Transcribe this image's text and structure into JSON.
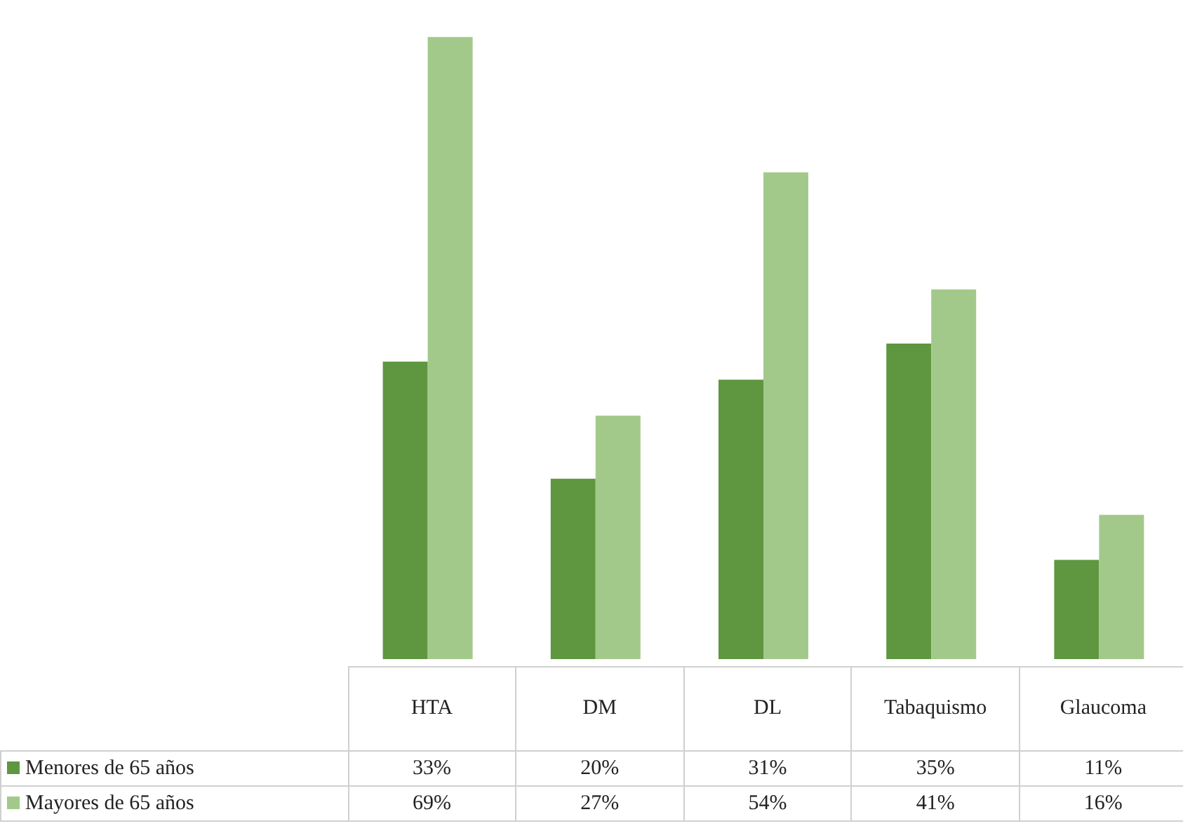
{
  "chart_data": {
    "type": "bar",
    "categories": [
      "HTA",
      "DM",
      "DL",
      "Tabaquismo",
      "Glaucoma"
    ],
    "legend": "bottom left",
    "series": [
      {
        "name": "Menores de 65 años",
        "color": "#5f9640",
        "values": [
          33,
          20,
          31,
          35,
          11
        ],
        "value_labels": [
          "33%",
          "20%",
          "31%",
          "35%",
          "11%"
        ]
      },
      {
        "name": "Mayores de 65 años",
        "color": "#a3c98a",
        "values": [
          69,
          27,
          54,
          41,
          16
        ],
        "value_labels": [
          "69%",
          "27%",
          "54%",
          "41%",
          "16%"
        ]
      }
    ]
  }
}
